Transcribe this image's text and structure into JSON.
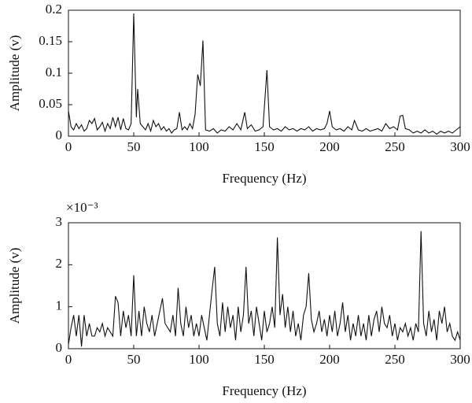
{
  "chart_data": [
    {
      "type": "line",
      "xlabel": "Frequency (Hz)",
      "ylabel": "Amplitude (v)",
      "xlim": [
        0,
        300
      ],
      "xticks": [
        0,
        50,
        100,
        150,
        200,
        250,
        300
      ],
      "ylim": [
        0,
        0.2
      ],
      "yticks": [
        0,
        0.05,
        0.1,
        0.15,
        0.2
      ],
      "color": "#111111",
      "x": [
        0,
        2,
        4,
        6,
        8,
        10,
        12,
        14,
        16,
        18,
        20,
        22,
        24,
        26,
        28,
        30,
        32,
        34,
        36,
        38,
        40,
        42,
        44,
        46,
        48,
        50,
        52,
        53,
        55,
        57,
        59,
        61,
        63,
        65,
        67,
        69,
        71,
        73,
        75,
        77,
        79,
        81,
        83,
        85,
        87,
        89,
        91,
        93,
        95,
        97,
        99,
        101,
        103,
        105,
        108,
        111,
        114,
        117,
        120,
        123,
        126,
        129,
        132,
        135,
        137,
        140,
        143,
        146,
        149,
        152,
        154,
        157,
        160,
        163,
        166,
        169,
        172,
        175,
        178,
        181,
        184,
        187,
        190,
        193,
        196,
        198,
        200,
        202,
        205,
        208,
        211,
        214,
        217,
        219,
        222,
        225,
        228,
        231,
        234,
        237,
        240,
        243,
        246,
        249,
        252,
        254,
        256,
        258,
        261,
        264,
        267,
        270,
        273,
        276,
        279,
        282,
        285,
        288,
        291,
        294,
        297,
        300
      ],
      "values": [
        0.04,
        0.015,
        0.01,
        0.02,
        0.012,
        0.018,
        0.008,
        0.012,
        0.025,
        0.02,
        0.028,
        0.01,
        0.015,
        0.022,
        0.008,
        0.02,
        0.012,
        0.03,
        0.015,
        0.03,
        0.01,
        0.028,
        0.012,
        0.01,
        0.02,
        0.195,
        0.03,
        0.075,
        0.02,
        0.015,
        0.01,
        0.02,
        0.008,
        0.025,
        0.015,
        0.02,
        0.01,
        0.015,
        0.008,
        0.012,
        0.005,
        0.01,
        0.012,
        0.038,
        0.01,
        0.015,
        0.01,
        0.02,
        0.012,
        0.035,
        0.098,
        0.08,
        0.152,
        0.01,
        0.008,
        0.012,
        0.005,
        0.01,
        0.008,
        0.015,
        0.01,
        0.02,
        0.01,
        0.038,
        0.012,
        0.018,
        0.008,
        0.01,
        0.015,
        0.105,
        0.015,
        0.01,
        0.012,
        0.008,
        0.015,
        0.01,
        0.012,
        0.008,
        0.012,
        0.01,
        0.015,
        0.008,
        0.012,
        0.01,
        0.012,
        0.02,
        0.04,
        0.015,
        0.01,
        0.012,
        0.008,
        0.015,
        0.01,
        0.025,
        0.01,
        0.008,
        0.012,
        0.008,
        0.01,
        0.012,
        0.008,
        0.02,
        0.012,
        0.015,
        0.01,
        0.032,
        0.033,
        0.012,
        0.01,
        0.005,
        0.008,
        0.005,
        0.01,
        0.005,
        0.008,
        0.003,
        0.008,
        0.005,
        0.008,
        0.005,
        0.01,
        0.015
      ]
    },
    {
      "type": "line",
      "xlabel": "Frequency (Hz)",
      "ylabel": "Amplitude (v)",
      "y_multiplier": "×10⁻³",
      "xlim": [
        0,
        300
      ],
      "xticks": [
        0,
        50,
        100,
        150,
        200,
        250,
        300
      ],
      "ylim": [
        0,
        3
      ],
      "yticks": [
        0,
        1,
        2,
        3
      ],
      "color": "#111111",
      "x": [
        0,
        2,
        4,
        6,
        8,
        10,
        12,
        14,
        16,
        18,
        20,
        22,
        24,
        26,
        28,
        30,
        32,
        34,
        36,
        38,
        40,
        42,
        44,
        46,
        48,
        50,
        52,
        54,
        56,
        58,
        60,
        62,
        64,
        66,
        68,
        70,
        72,
        74,
        76,
        78,
        80,
        82,
        84,
        86,
        88,
        90,
        92,
        94,
        96,
        98,
        100,
        102,
        104,
        106,
        108,
        110,
        112,
        114,
        116,
        118,
        120,
        122,
        124,
        126,
        128,
        130,
        132,
        134,
        136,
        138,
        140,
        142,
        144,
        146,
        148,
        150,
        152,
        154,
        156,
        158,
        160,
        162,
        164,
        166,
        168,
        170,
        172,
        174,
        176,
        178,
        180,
        182,
        184,
        186,
        188,
        190,
        192,
        194,
        196,
        198,
        200,
        202,
        204,
        206,
        208,
        210,
        212,
        214,
        216,
        218,
        220,
        222,
        224,
        226,
        228,
        230,
        232,
        234,
        236,
        238,
        240,
        242,
        244,
        246,
        248,
        250,
        252,
        254,
        256,
        258,
        260,
        262,
        264,
        266,
        268,
        270,
        272,
        274,
        276,
        278,
        280,
        282,
        284,
        286,
        288,
        290,
        292,
        294,
        296,
        298,
        300
      ],
      "values": [
        0.1,
        0.5,
        0.8,
        0.3,
        0.8,
        0.05,
        0.8,
        0.3,
        0.6,
        0.3,
        0.3,
        0.5,
        0.4,
        0.6,
        0.3,
        0.5,
        0.4,
        0.3,
        1.25,
        1.1,
        0.3,
        0.9,
        0.5,
        0.8,
        0.3,
        1.75,
        0.3,
        0.9,
        0.3,
        1.0,
        0.6,
        0.4,
        0.8,
        0.3,
        0.6,
        0.9,
        1.2,
        0.6,
        0.5,
        0.4,
        0.8,
        0.3,
        1.45,
        0.6,
        0.3,
        1.0,
        0.5,
        0.8,
        0.3,
        0.6,
        0.3,
        0.8,
        0.5,
        0.2,
        0.8,
        1.4,
        1.95,
        0.6,
        0.3,
        1.1,
        0.4,
        1.0,
        0.5,
        0.8,
        0.2,
        1.0,
        0.4,
        0.8,
        1.95,
        0.6,
        0.9,
        0.3,
        1.0,
        0.6,
        0.2,
        0.9,
        0.4,
        0.6,
        1.0,
        0.5,
        2.65,
        0.8,
        1.3,
        0.5,
        1.0,
        0.4,
        0.9,
        0.3,
        0.6,
        0.2,
        0.8,
        1.0,
        1.8,
        0.7,
        0.4,
        0.6,
        0.9,
        0.4,
        0.7,
        0.3,
        0.8,
        0.4,
        0.9,
        0.3,
        0.6,
        1.1,
        0.4,
        0.8,
        0.2,
        0.6,
        0.3,
        0.8,
        0.3,
        0.6,
        0.2,
        0.8,
        0.3,
        0.7,
        0.9,
        0.4,
        1.0,
        0.6,
        0.5,
        0.8,
        0.3,
        0.6,
        0.2,
        0.5,
        0.4,
        0.6,
        0.3,
        0.5,
        0.2,
        0.6,
        0.4,
        2.8,
        0.6,
        0.3,
        0.9,
        0.4,
        0.7,
        0.2,
        0.9,
        0.6,
        1.0,
        0.4,
        0.6,
        0.3,
        0.2,
        0.4,
        0.2
      ]
    }
  ]
}
